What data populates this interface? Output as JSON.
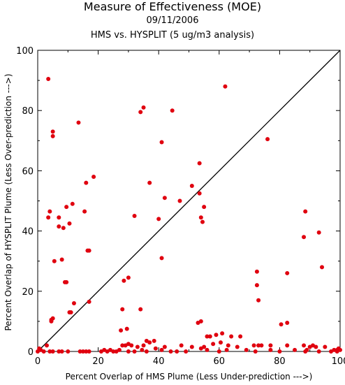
{
  "chart_data": {
    "type": "scatter",
    "title": "Measure of Effectiveness (MOE)",
    "subtitle": "09/11/2006",
    "subtitle2": "HMS vs. HYSPLIT  (5 ug/m3 analysis)",
    "xlabel": "Percent Overlap of HMS Plume (Less Under-prediction --->)",
    "ylabel": "Percent Overlap of HYSPLIT Plume (Less Over-prediction --->)",
    "xlim": [
      0,
      100
    ],
    "ylim": [
      0,
      100
    ],
    "xticks": [
      "0",
      "20",
      "40",
      "60",
      "80",
      "100"
    ],
    "yticks": [
      "0",
      "20",
      "40",
      "60",
      "80",
      "100"
    ],
    "grid": false,
    "reference_line": "y = x",
    "marker_color": "#e0000f",
    "points": [
      [
        3.5,
        90.5
      ],
      [
        62,
        88
      ],
      [
        35,
        81
      ],
      [
        44.5,
        80
      ],
      [
        34,
        79.5
      ],
      [
        13.5,
        76
      ],
      [
        5,
        73
      ],
      [
        5,
        71.5
      ],
      [
        76,
        70.5
      ],
      [
        41,
        69.5
      ],
      [
        53.5,
        62.5
      ],
      [
        18.5,
        58
      ],
      [
        16,
        56
      ],
      [
        37,
        56
      ],
      [
        51,
        55
      ],
      [
        53.5,
        52.5
      ],
      [
        42,
        51
      ],
      [
        47,
        50
      ],
      [
        11.5,
        49
      ],
      [
        9.5,
        48
      ],
      [
        55,
        48
      ],
      [
        4,
        46.5
      ],
      [
        15.5,
        46.5
      ],
      [
        88.5,
        46.5
      ],
      [
        3.5,
        44.5
      ],
      [
        7,
        44.5
      ],
      [
        32,
        45
      ],
      [
        40,
        44
      ],
      [
        54,
        44.5
      ],
      [
        54.5,
        43
      ],
      [
        10.5,
        42.5
      ],
      [
        7,
        41.5
      ],
      [
        8.5,
        41
      ],
      [
        93,
        39.5
      ],
      [
        88,
        38
      ],
      [
        16.5,
        33.5
      ],
      [
        17,
        33.5
      ],
      [
        41,
        31
      ],
      [
        8,
        30.5
      ],
      [
        5.5,
        30
      ],
      [
        94,
        28
      ],
      [
        72.5,
        26.5
      ],
      [
        82.5,
        26
      ],
      [
        30,
        24.5
      ],
      [
        28.5,
        23.5
      ],
      [
        9,
        23
      ],
      [
        9.5,
        23
      ],
      [
        72.5,
        22
      ],
      [
        73,
        17
      ],
      [
        12,
        16
      ],
      [
        17,
        16.5
      ],
      [
        10.5,
        13
      ],
      [
        11,
        13
      ],
      [
        28,
        14
      ],
      [
        34,
        14
      ],
      [
        5,
        11
      ],
      [
        4.5,
        10.5
      ],
      [
        4.5,
        10
      ],
      [
        53,
        9.5
      ],
      [
        54,
        10
      ],
      [
        82.5,
        9.5
      ],
      [
        80.5,
        9
      ],
      [
        29.5,
        7.5
      ],
      [
        27.5,
        7
      ],
      [
        61,
        6
      ],
      [
        59,
        5.5
      ],
      [
        56,
        5
      ],
      [
        57,
        5
      ],
      [
        64,
        5
      ],
      [
        67,
        5
      ],
      [
        60.5,
        3
      ],
      [
        36,
        3.5
      ],
      [
        38.5,
        3.5
      ],
      [
        37,
        3
      ],
      [
        28,
        2
      ],
      [
        29,
        2
      ],
      [
        30,
        2.5
      ],
      [
        31,
        2
      ],
      [
        33,
        1.5
      ],
      [
        35,
        2
      ],
      [
        39,
        1
      ],
      [
        42,
        1.5
      ],
      [
        47.5,
        2
      ],
      [
        51,
        1.5
      ],
      [
        54,
        1
      ],
      [
        55,
        1.5
      ],
      [
        58,
        2.5
      ],
      [
        63,
        2
      ],
      [
        66,
        1.5
      ],
      [
        71.5,
        2
      ],
      [
        73,
        2
      ],
      [
        74,
        2
      ],
      [
        77,
        2
      ],
      [
        82.5,
        2
      ],
      [
        88,
        2
      ],
      [
        90,
        1.5
      ],
      [
        91,
        2
      ],
      [
        92,
        1.5
      ],
      [
        95,
        1.5
      ],
      [
        3,
        2
      ],
      [
        0.5,
        1
      ],
      [
        1,
        0.5
      ],
      [
        0,
        0
      ],
      [
        2,
        0
      ],
      [
        4,
        0
      ],
      [
        5,
        0
      ],
      [
        7,
        0
      ],
      [
        8,
        0
      ],
      [
        10,
        0
      ],
      [
        14,
        0
      ],
      [
        15,
        0
      ],
      [
        16,
        0
      ],
      [
        17,
        0
      ],
      [
        21,
        0
      ],
      [
        22,
        0.5
      ],
      [
        23,
        0
      ],
      [
        24,
        0.5
      ],
      [
        25,
        0
      ],
      [
        26,
        0
      ],
      [
        27,
        0.5
      ],
      [
        30,
        0
      ],
      [
        32,
        0
      ],
      [
        34.5,
        0.5
      ],
      [
        36,
        0
      ],
      [
        41,
        0.5
      ],
      [
        44,
        0
      ],
      [
        46,
        0
      ],
      [
        49,
        0
      ],
      [
        56,
        0.5
      ],
      [
        60,
        0
      ],
      [
        62.5,
        0.5
      ],
      [
        69,
        0.5
      ],
      [
        72,
        0
      ],
      [
        77,
        0.5
      ],
      [
        80,
        0
      ],
      [
        85,
        0.5
      ],
      [
        88.5,
        0
      ],
      [
        89,
        0.5
      ],
      [
        93,
        0
      ],
      [
        97,
        0
      ],
      [
        98,
        0.5
      ],
      [
        99,
        0
      ],
      [
        99.5,
        1
      ],
      [
        100,
        0.5
      ],
      [
        99,
        0.5
      ]
    ]
  }
}
